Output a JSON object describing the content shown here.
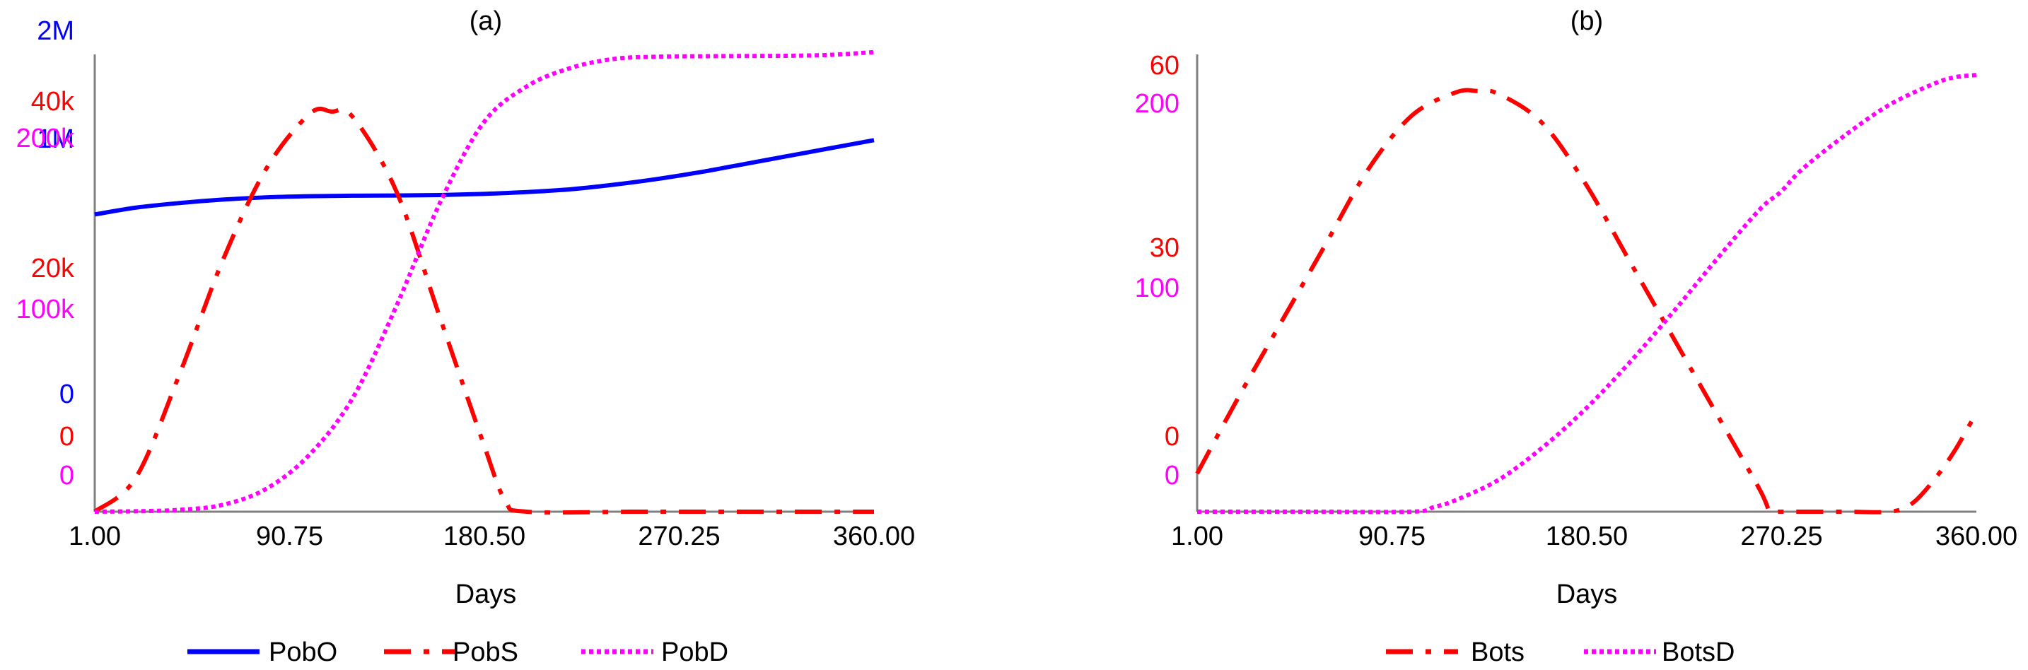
{
  "colors": {
    "blue": "#0000ff",
    "red": "#ff0000",
    "magenta": "#ff00ff",
    "axis": "#808080",
    "text": "#000000"
  },
  "legend_placement": "bottom-center",
  "chart_data": [
    {
      "type": "line",
      "title": "(a)",
      "xlabel": "Days",
      "xlim": [
        1,
        360
      ],
      "x_ticks": [
        "1.00",
        "90.75",
        "180.50",
        "270.25",
        "360.00"
      ],
      "y_axes": [
        {
          "color": "#0000ff",
          "ylim": [
            0,
            2000000
          ],
          "tick_labels": [
            "0",
            "1M",
            "2M"
          ]
        },
        {
          "color": "#ff0000",
          "ylim": [
            0,
            40000
          ],
          "tick_labels": [
            "0",
            "20k",
            "40k"
          ]
        },
        {
          "color": "#ff00ff",
          "ylim": [
            0,
            200000
          ],
          "tick_labels": [
            "0",
            "100k",
            "200k"
          ]
        }
      ],
      "series": [
        {
          "name": "PobO",
          "color": "#0000ff",
          "style": "solid",
          "axis": 0,
          "x": [
            1,
            20,
            40,
            60,
            80,
            100,
            120,
            140,
            160,
            180,
            200,
            220,
            240,
            260,
            280,
            300,
            320,
            340,
            360
          ],
          "y": [
            1300000,
            1330000,
            1350000,
            1365000,
            1375000,
            1380000,
            1382000,
            1383000,
            1385000,
            1390000,
            1398000,
            1410000,
            1430000,
            1455000,
            1485000,
            1520000,
            1555000,
            1590000,
            1625000
          ]
        },
        {
          "name": "PobS",
          "color": "#ff0000",
          "style": "dashdot",
          "axis": 1,
          "x": [
            1,
            20,
            40,
            60,
            80,
            100,
            110,
            120,
            140,
            160,
            180,
            190,
            200,
            250,
            300,
            360
          ],
          "y": [
            0,
            3000,
            12000,
            22000,
            30000,
            34800,
            35000,
            34500,
            28000,
            17000,
            6000,
            1000,
            0,
            0,
            0,
            0
          ]
        },
        {
          "name": "PobD",
          "color": "#ff00ff",
          "style": "dotted",
          "axis": 2,
          "x": [
            1,
            20,
            40,
            60,
            80,
            100,
            120,
            140,
            160,
            180,
            200,
            220,
            240,
            260,
            280,
            300,
            320,
            340,
            360
          ],
          "y": [
            0,
            200,
            800,
            3000,
            10000,
            25000,
            50000,
            90000,
            135000,
            170000,
            186000,
            194000,
            198000,
            199000,
            199200,
            199300,
            199400,
            199800,
            201000
          ]
        }
      ]
    },
    {
      "type": "line",
      "title": "(b)",
      "xlabel": "Days",
      "xlim": [
        1,
        360
      ],
      "x_ticks": [
        "1.00",
        "90.75",
        "180.50",
        "270.25",
        "360.00"
      ],
      "y_axes": [
        {
          "color": "#ff0000",
          "ylim": [
            0,
            60
          ],
          "tick_labels": [
            "0",
            "30",
            "60"
          ]
        },
        {
          "color": "#ff00ff",
          "ylim": [
            0,
            200
          ],
          "tick_labels": [
            "0",
            "100",
            "200"
          ]
        }
      ],
      "series": [
        {
          "name": "Bots",
          "color": "#ff0000",
          "style": "dashdot",
          "axis": 0,
          "x": [
            1,
            20,
            40,
            60,
            80,
            100,
            120,
            130,
            140,
            160,
            180,
            200,
            220,
            240,
            260,
            265,
            270,
            300,
            320,
            330,
            340,
            350,
            360
          ],
          "y": [
            5,
            15,
            25,
            35,
            45,
            52,
            55,
            55.2,
            54.8,
            51,
            43,
            33,
            23,
            13,
            3,
            0,
            0,
            0,
            0,
            1,
            4,
            8,
            13
          ]
        },
        {
          "name": "BotsD",
          "color": "#ff00ff",
          "style": "dotted",
          "axis": 1,
          "x": [
            1,
            50,
            100,
            110,
            120,
            140,
            160,
            180,
            200,
            220,
            240,
            260,
            270,
            280,
            300,
            320,
            340,
            350,
            360
          ],
          "y": [
            0,
            0,
            0,
            2,
            5,
            14,
            28,
            45,
            65,
            87,
            110,
            132,
            140,
            150,
            165,
            178,
            187,
            190,
            191
          ]
        }
      ]
    }
  ]
}
